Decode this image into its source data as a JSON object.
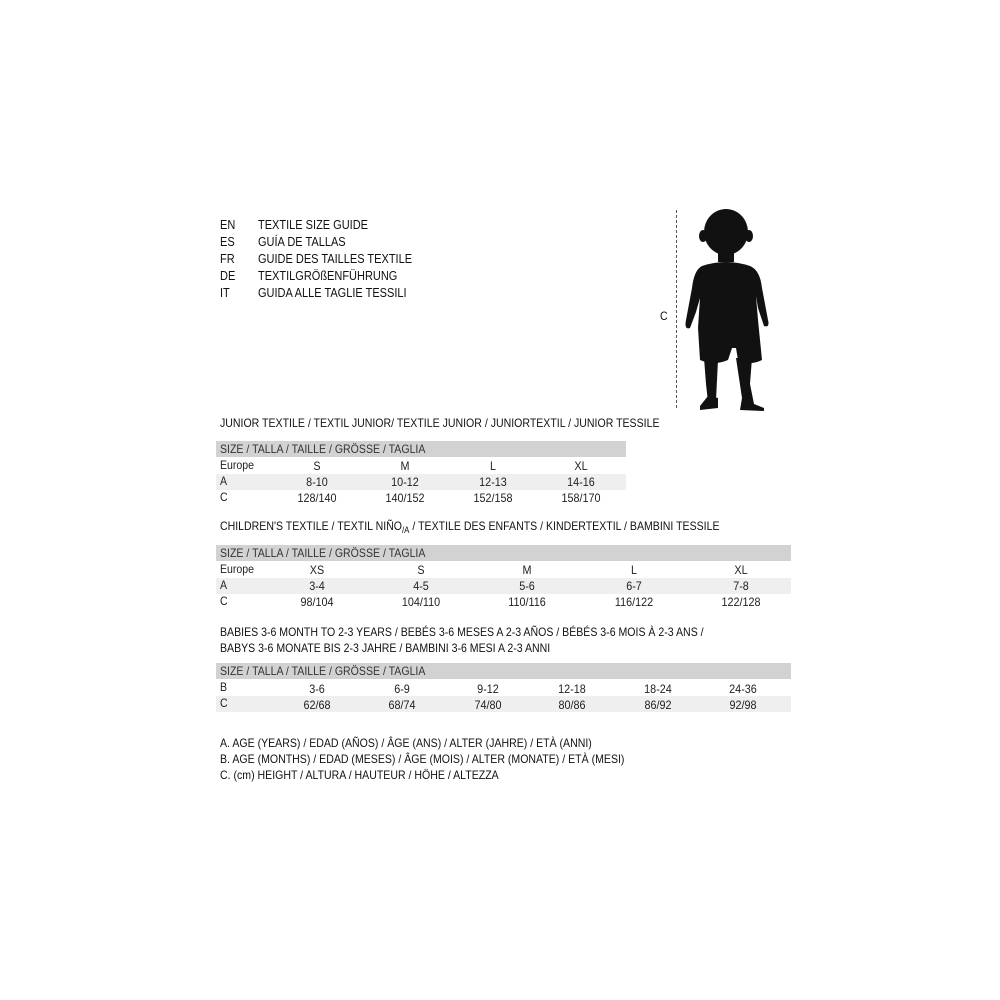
{
  "header": {
    "lines": [
      {
        "code": "EN",
        "text": "TEXTILE SIZE GUIDE"
      },
      {
        "code": "ES",
        "text": "GUÍA DE TALLAS"
      },
      {
        "code": "FR",
        "text": "GUIDE DES TAILLES TEXTILE"
      },
      {
        "code": "DE",
        "text": "TEXTILGRÖßENFÜHRUNG"
      },
      {
        "code": "IT",
        "text": "GUIDA ALLE TAGLIE TESSILI"
      }
    ]
  },
  "figure": {
    "measure_label": "C",
    "icon": "child-silhouette-icon"
  },
  "size_header": "SIZE / TALLA / TAILLE / GRÖSSE / TAGLIA",
  "junior": {
    "title": "JUNIOR TEXTILE / TEXTIL JUNIOR/ TEXTILE JUNIOR / JUNIORTEXTIL / JUNIOR TESSILE",
    "rows": [
      {
        "label": "Europe",
        "values": [
          "S",
          "M",
          "L",
          "XL"
        ]
      },
      {
        "label": "A",
        "values": [
          "8-10",
          "10-12",
          "12-13",
          "14-16"
        ]
      },
      {
        "label": "C",
        "values": [
          "128/140",
          "140/152",
          "152/158",
          "158/170"
        ]
      }
    ]
  },
  "children": {
    "title_a": "CHILDREN'S TEXTILE / TEXTIL NIÑO",
    "title_sub": "/A",
    "title_b": " / TEXTILE DES ENFANTS / KINDERTEXTIL / BAMBINI TESSILE",
    "rows": [
      {
        "label": "Europe",
        "values": [
          "XS",
          "S",
          "M",
          "L",
          "XL"
        ]
      },
      {
        "label": "A",
        "values": [
          "3-4",
          "4-5",
          "5-6",
          "6-7",
          "7-8"
        ]
      },
      {
        "label": "C",
        "values": [
          "98/104",
          "104/110",
          "110/116",
          "116/122",
          "122/128"
        ]
      }
    ]
  },
  "babies": {
    "title_line1": "BABIES 3-6 MONTH TO 2-3 YEARS / BEBÉS 3-6 MESES A 2-3 AÑOS / BÉBÉS 3-6 MOIS À 2-3 ANS /",
    "title_line2": "BABYS 3-6 MONATE BIS 2-3 JAHRE / BAMBINI 3-6 MESI A 2-3 ANNI",
    "rows": [
      {
        "label": "B",
        "values": [
          "3-6",
          "6-9",
          "9-12",
          "12-18",
          "18-24",
          "24-36"
        ]
      },
      {
        "label": "C",
        "values": [
          "62/68",
          "68/74",
          "74/80",
          "80/86",
          "86/92",
          "92/98"
        ]
      }
    ]
  },
  "legend": [
    "A. AGE (YEARS) / EDAD (AÑOS) / ÂGE (ANS) / ALTER (JAHRE) / ETÀ (ANNI)",
    "B. AGE (MONTHS) / EDAD (MESES) / ÂGE (MOIS) / ALTER (MONATE) / ETÀ (MESI)",
    "C. (cm) HEIGHT / ALTURA / HAUTEUR / HÖHE / ALTEZZA"
  ],
  "colors": {
    "header_bar": "#d2d2d2",
    "shaded_row": "#efefef"
  }
}
